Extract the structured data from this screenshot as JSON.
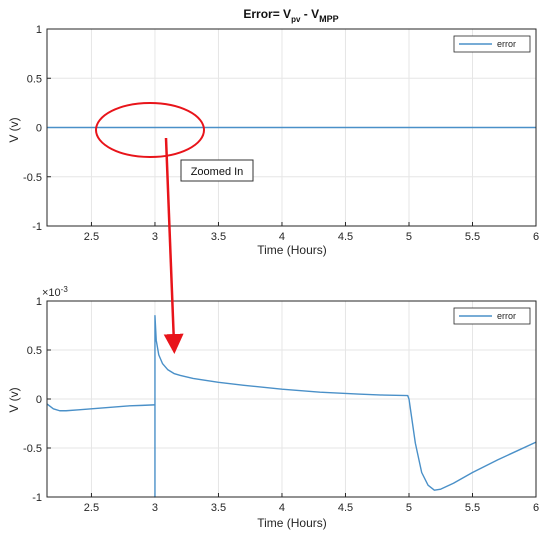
{
  "chart_data": [
    {
      "type": "line",
      "title_main": "Error= V",
      "title_sub1": "pv",
      "title_mid": " - V",
      "title_sub2": "MPP",
      "xlabel": "Time (Hours)",
      "ylabel": "V (v)",
      "xlim": [
        2.15,
        6
      ],
      "ylim": [
        -1,
        1
      ],
      "xticks": [
        "2.5",
        "3",
        "3.5",
        "4",
        "4.5",
        "5",
        "5.5",
        "6"
      ],
      "yticks": [
        "1",
        "0.5",
        "0",
        "-0.5",
        "-1"
      ],
      "grid": true,
      "legend_position": "top-right",
      "series": [
        {
          "name": "error",
          "color": "#4a90c8",
          "x": [
            2.15,
            3,
            4,
            5,
            6
          ],
          "y": [
            0,
            0,
            0,
            0,
            0
          ]
        }
      ],
      "annotation": {
        "text": "Zoomed In",
        "ellipse_center": [
          2.9,
          0
        ],
        "ellipse_color": "#e8141a"
      }
    },
    {
      "type": "line",
      "xlabel": "Time (Hours)",
      "ylabel": "V (v)",
      "exponent_label": "×10",
      "exponent_power": "-3",
      "xlim": [
        2.15,
        6
      ],
      "ylim": [
        -1,
        1
      ],
      "xticks": [
        "2.5",
        "3",
        "3.5",
        "4",
        "4.5",
        "5",
        "5.5",
        "6"
      ],
      "yticks": [
        "1",
        "0.5",
        "0",
        "-0.5",
        "-1"
      ],
      "grid": true,
      "legend_position": "top-right",
      "series": [
        {
          "name": "error",
          "color": "#4a90c8",
          "x": [
            2.15,
            2.2,
            2.25,
            2.3,
            2.4,
            2.5,
            2.6,
            2.7,
            2.8,
            2.9,
            2.99,
            3.0,
            3.0,
            3.0,
            3.01,
            3.03,
            3.06,
            3.1,
            3.15,
            3.2,
            3.3,
            3.5,
            3.7,
            4.0,
            4.3,
            4.6,
            4.8,
            4.99,
            5.0,
            5.05,
            5.1,
            5.15,
            5.2,
            5.25,
            5.35,
            5.5,
            5.7,
            5.85,
            6.0
          ],
          "y": [
            -0.05,
            -0.1,
            -0.12,
            -0.12,
            -0.11,
            -0.1,
            -0.09,
            -0.08,
            -0.07,
            -0.065,
            -0.06,
            -0.06,
            -1.0,
            0.85,
            0.6,
            0.45,
            0.36,
            0.3,
            0.26,
            0.24,
            0.21,
            0.17,
            0.14,
            0.1,
            0.07,
            0.05,
            0.04,
            0.035,
            0.0,
            -0.45,
            -0.75,
            -0.88,
            -0.93,
            -0.92,
            -0.86,
            -0.75,
            -0.62,
            -0.53,
            -0.44
          ]
        }
      ]
    }
  ]
}
